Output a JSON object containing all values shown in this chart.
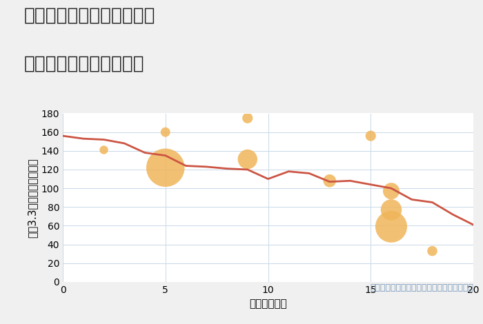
{
  "title_line1": "神奈川県茅ヶ崎市茅ヶ崎の",
  "title_line2": "駅距離別中古戸建て価格",
  "xlabel": "駅距離（分）",
  "ylabel": "坪（3.3㎡）単価（万円）",
  "annotation": "円の大きさは、取引のあった物件面積を示す",
  "background_color": "#f0f0f0",
  "plot_background_color": "#ffffff",
  "line_color": "#cc5544",
  "line_x": [
    0,
    1,
    2,
    3,
    4,
    5,
    6,
    7,
    8,
    9,
    10,
    11,
    12,
    13,
    14,
    15,
    16,
    17,
    18,
    19,
    20
  ],
  "line_y": [
    156,
    153,
    152,
    148,
    138,
    135,
    124,
    123,
    121,
    120,
    110,
    118,
    116,
    107,
    108,
    104,
    100,
    88,
    85,
    72,
    61
  ],
  "bubble_x": [
    2,
    5,
    5,
    9,
    9,
    13,
    15,
    16,
    16,
    16,
    18
  ],
  "bubble_y": [
    141,
    160,
    122,
    175,
    131,
    108,
    156,
    97,
    77,
    59,
    33
  ],
  "bubble_size": [
    80,
    100,
    1600,
    120,
    420,
    180,
    120,
    300,
    480,
    1100,
    110
  ],
  "bubble_color": "#f0b55a",
  "bubble_alpha": 0.85,
  "xlim": [
    0,
    20
  ],
  "ylim": [
    0,
    180
  ],
  "xticks": [
    0,
    5,
    10,
    15,
    20
  ],
  "yticks": [
    0,
    20,
    40,
    60,
    80,
    100,
    120,
    140,
    160,
    180
  ],
  "grid_color": "#c8d8e8",
  "title_fontsize": 19,
  "label_fontsize": 11,
  "annotation_fontsize": 9,
  "annotation_color": "#7799bb",
  "tick_fontsize": 10
}
